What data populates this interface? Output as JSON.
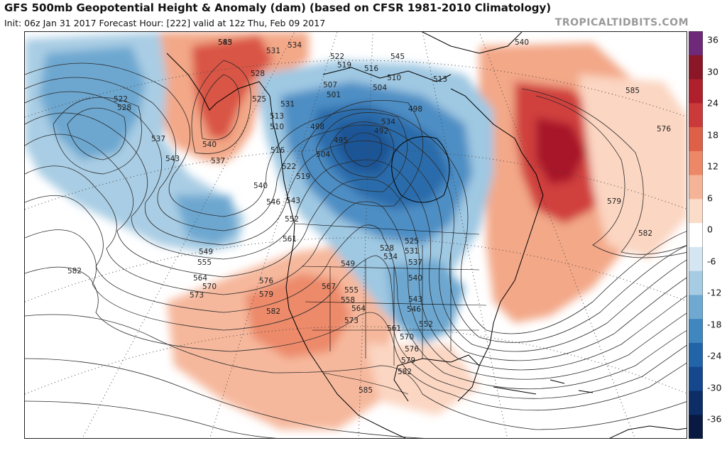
{
  "header": {
    "title": "GFS 500mb Geopotential Height & Anomaly (dam) (based on CFSR 1981-2010 Climatology)",
    "subtitle": "Init: 06z Jan 31 2017   Forecast Hour: [222]   valid at 12z Thu, Feb 09 2017",
    "brand": "TROPICALTIDBITS.COM"
  },
  "colorbar": {
    "ticks": [
      "36",
      "30",
      "24",
      "18",
      "12",
      "6",
      "0",
      "-6",
      "-12",
      "-18",
      "-24",
      "-30",
      "-36"
    ],
    "colors": [
      "#6e2a78",
      "#8a1626",
      "#b01f2c",
      "#cb3a3a",
      "#de6048",
      "#ec8868",
      "#f5b497",
      "#fbdcc9",
      "#ffffff",
      "#d4e6f1",
      "#a6cce3",
      "#6fa9d2",
      "#4086bf",
      "#2264a8",
      "#14478c",
      "#0c2d66",
      "#081a42"
    ]
  },
  "map": {
    "height_labels": [
      "543",
      "531",
      "534",
      "522",
      "519",
      "516",
      "545",
      "528",
      "540",
      "510",
      "513",
      "504",
      "507",
      "501",
      "522",
      "528",
      "525",
      "531",
      "513",
      "510",
      "498",
      "495",
      "492",
      "534",
      "537",
      "543",
      "540",
      "537",
      "516",
      "522",
      "519",
      "498",
      "504",
      "540",
      "546",
      "543",
      "552",
      "561",
      "549",
      "555",
      "564",
      "570",
      "573",
      "582",
      "576",
      "579",
      "582",
      "585",
      "525",
      "528",
      "531",
      "534",
      "537",
      "540",
      "543",
      "546",
      "549",
      "555",
      "558",
      "564",
      "567",
      "573",
      "552",
      "561",
      "570",
      "576",
      "579",
      "582",
      "585",
      "576",
      "579",
      "582",
      "585"
    ]
  }
}
